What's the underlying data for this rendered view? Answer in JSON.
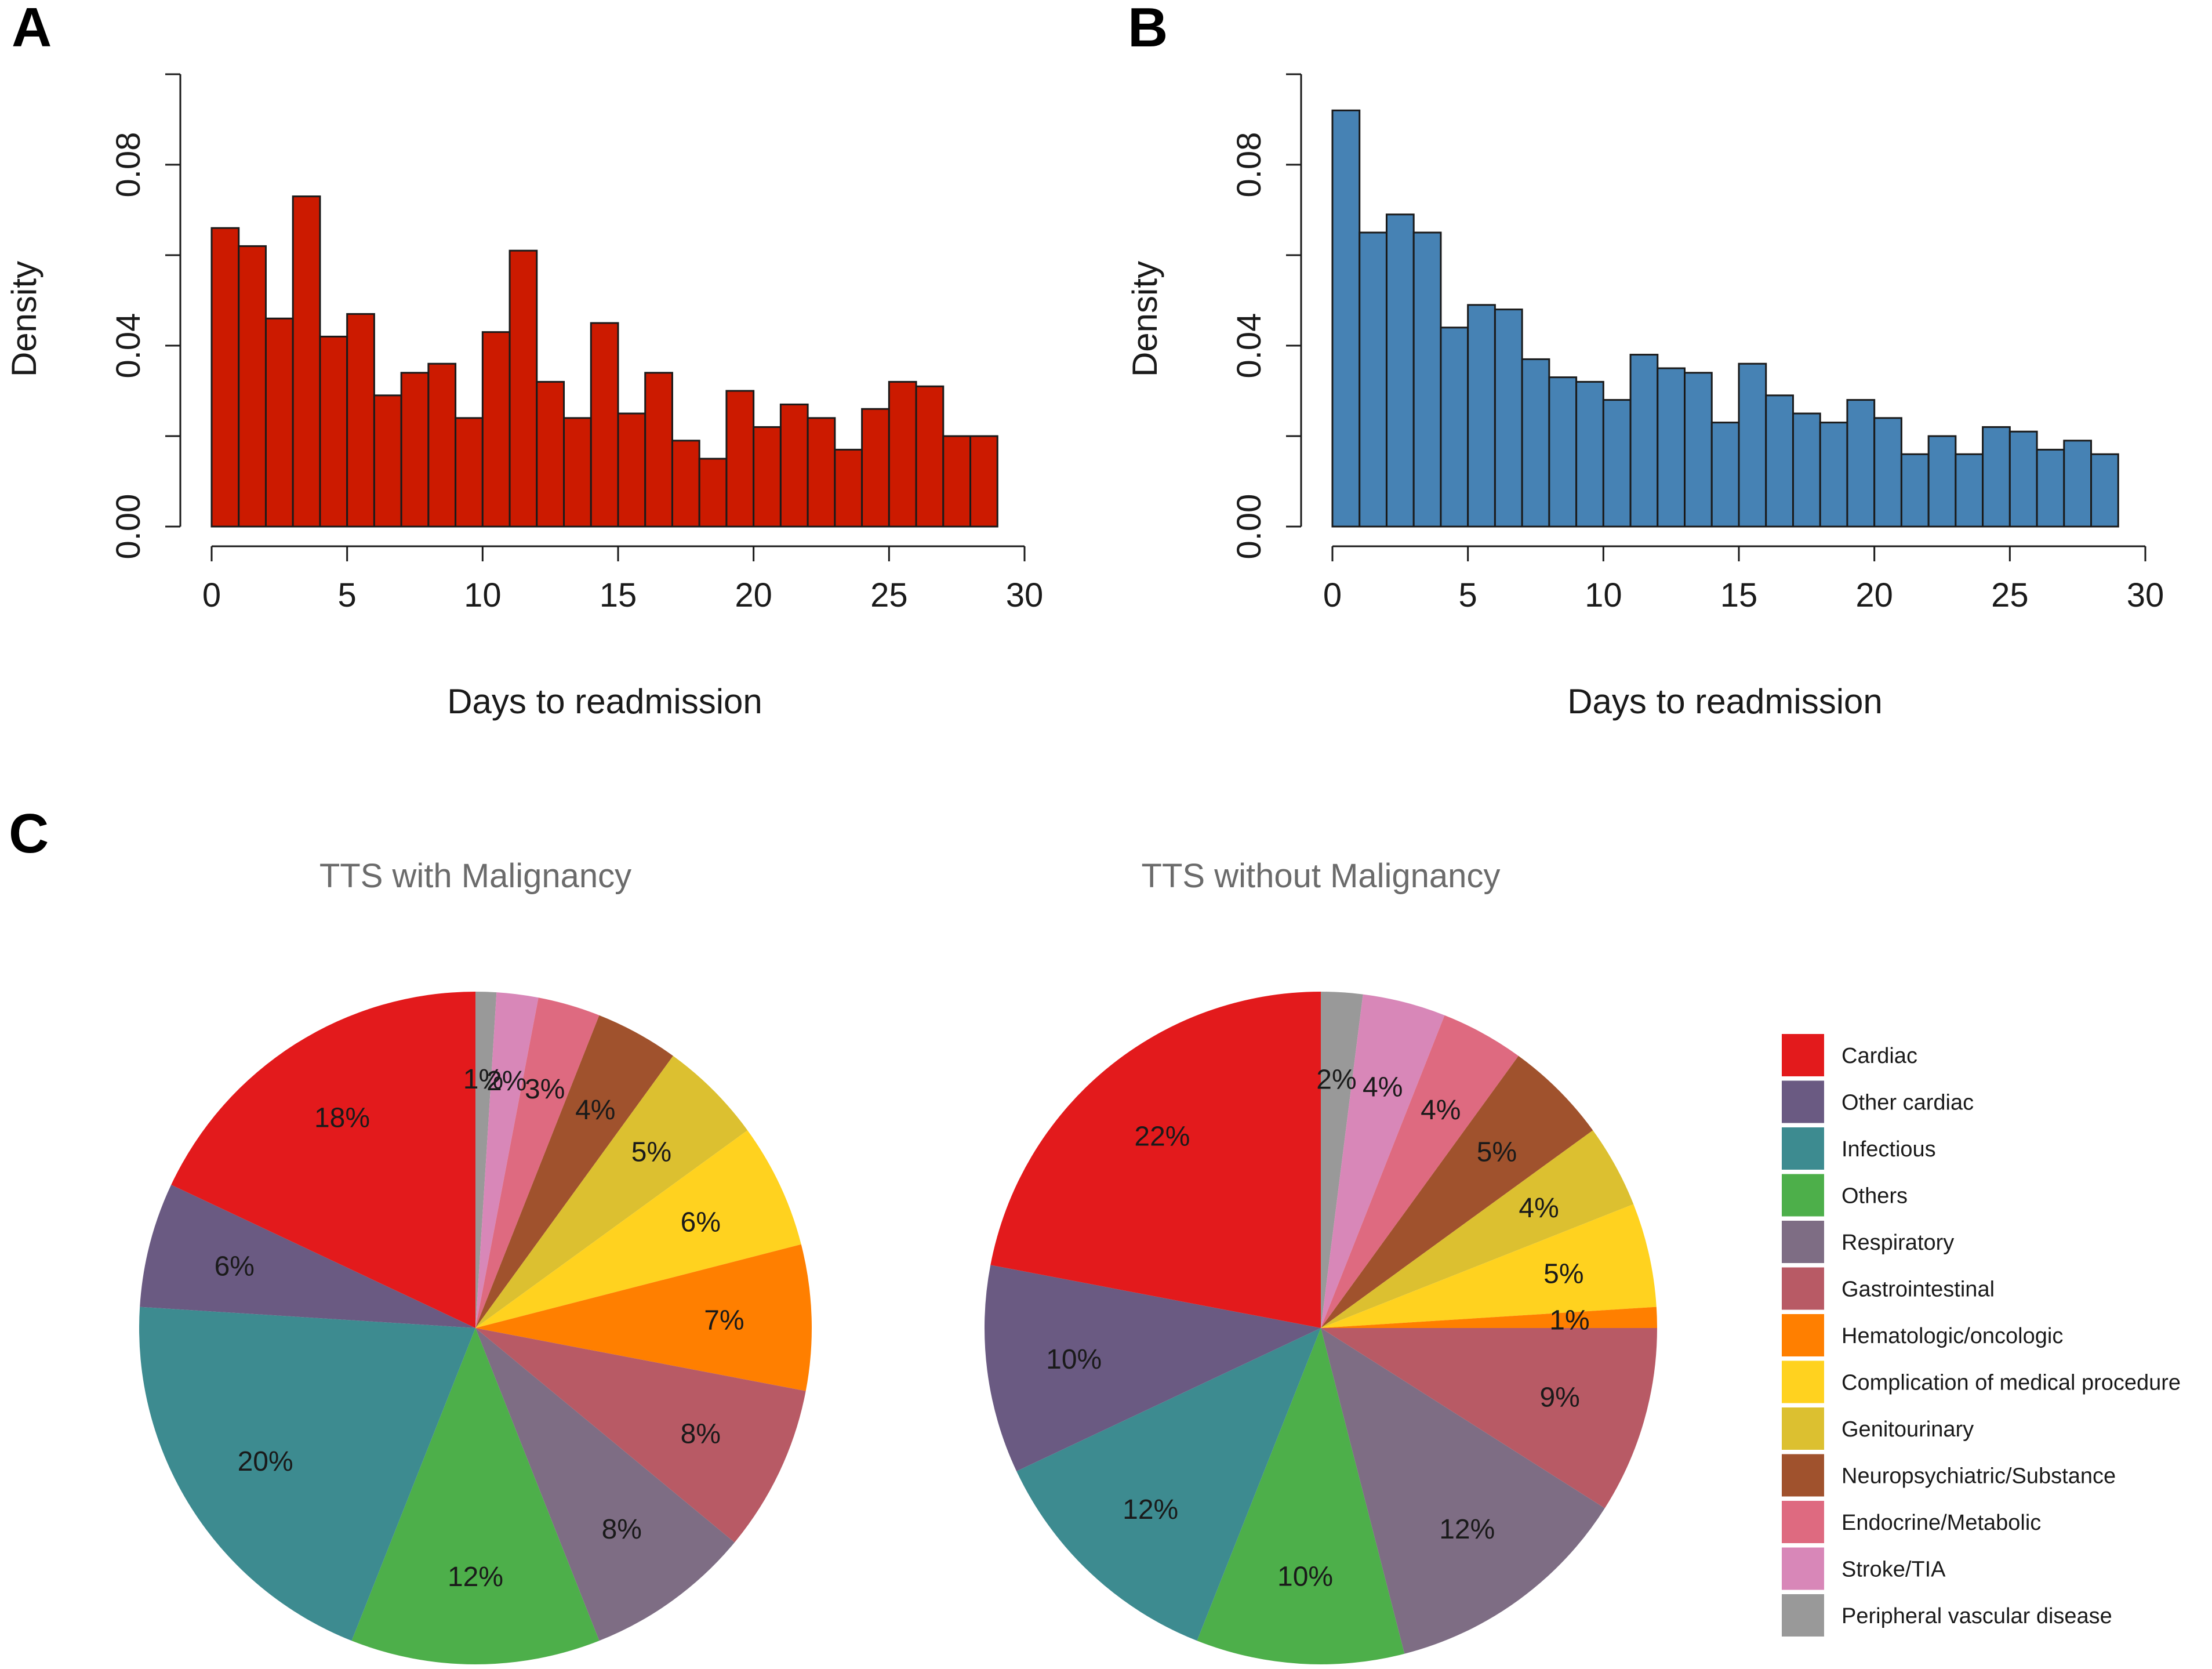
{
  "panels": {
    "a": "A",
    "b": "B",
    "c": "C"
  },
  "chart_data": [
    {
      "type": "bar",
      "subtype": "histogram",
      "panel": "A",
      "color": "#cc1a00",
      "xlabel": "Days to readmission",
      "ylabel": "Density",
      "xlim": [
        0,
        30
      ],
      "ylim": [
        0,
        0.1
      ],
      "xticks": [
        "0",
        "5",
        "10",
        "15",
        "20",
        "25",
        "30"
      ],
      "yticks": [
        "0.00",
        "0.04",
        "0.08"
      ],
      "bin_width": 1,
      "values": [
        0.066,
        0.062,
        0.046,
        0.073,
        0.042,
        0.047,
        0.029,
        0.034,
        0.036,
        0.024,
        0.043,
        0.061,
        0.032,
        0.024,
        0.045,
        0.025,
        0.034,
        0.019,
        0.015,
        0.03,
        0.022,
        0.027,
        0.024,
        0.017,
        0.026,
        0.032,
        0.031,
        0.02,
        0.02
      ]
    },
    {
      "type": "bar",
      "subtype": "histogram",
      "panel": "B",
      "color": "#4682b4",
      "xlabel": "Days to readmission",
      "ylabel": "Density",
      "xlim": [
        0,
        30
      ],
      "ylim": [
        0,
        0.1
      ],
      "xticks": [
        "0",
        "5",
        "10",
        "15",
        "20",
        "25",
        "30"
      ],
      "yticks": [
        "0.00",
        "0.04",
        "0.08"
      ],
      "bin_width": 1,
      "values": [
        0.092,
        0.065,
        0.069,
        0.065,
        0.044,
        0.049,
        0.048,
        0.037,
        0.033,
        0.032,
        0.028,
        0.038,
        0.035,
        0.034,
        0.023,
        0.036,
        0.029,
        0.025,
        0.023,
        0.028,
        0.024,
        0.016,
        0.02,
        0.016,
        0.022,
        0.021,
        0.017,
        0.019,
        0.016
      ]
    },
    {
      "type": "pie",
      "panel": "C",
      "title": "TTS with Malignancy",
      "slices": [
        {
          "category": "Peripheral vascular disease",
          "value": 1,
          "label": "1%"
        },
        {
          "category": "Stroke/TIA",
          "value": 2,
          "label": "2%"
        },
        {
          "category": "Endocrine/Metabolic",
          "value": 3,
          "label": "3%"
        },
        {
          "category": "Neuropsychiatric/Substance",
          "value": 4,
          "label": "4%"
        },
        {
          "category": "Genitourinary",
          "value": 5,
          "label": "5%"
        },
        {
          "category": "Complication of medical procedure",
          "value": 6,
          "label": "6%"
        },
        {
          "category": "Hematologic/oncologic",
          "value": 7,
          "label": "7%"
        },
        {
          "category": "Gastrointestinal",
          "value": 8,
          "label": "8%"
        },
        {
          "category": "Respiratory",
          "value": 8,
          "label": "8%"
        },
        {
          "category": "Others",
          "value": 12,
          "label": "12%"
        },
        {
          "category": "Infectious",
          "value": 20,
          "label": "20%"
        },
        {
          "category": "Other cardiac",
          "value": 6,
          "label": "6%"
        },
        {
          "category": "Cardiac",
          "value": 18,
          "label": "18%"
        }
      ]
    },
    {
      "type": "pie",
      "panel": "C",
      "title": "TTS without Malignancy",
      "slices": [
        {
          "category": "Peripheral vascular disease",
          "value": 2,
          "label": "2%"
        },
        {
          "category": "Stroke/TIA",
          "value": 4,
          "label": "4%"
        },
        {
          "category": "Endocrine/Metabolic",
          "value": 4,
          "label": "4%"
        },
        {
          "category": "Neuropsychiatric/Substance",
          "value": 5,
          "label": "5%"
        },
        {
          "category": "Genitourinary",
          "value": 4,
          "label": "4%"
        },
        {
          "category": "Complication of medical procedure",
          "value": 5,
          "label": "5%"
        },
        {
          "category": "Hematologic/oncologic",
          "value": 1,
          "label": "1%"
        },
        {
          "category": "Gastrointestinal",
          "value": 9,
          "label": "9%"
        },
        {
          "category": "Respiratory",
          "value": 12,
          "label": "12%"
        },
        {
          "category": "Others",
          "value": 10,
          "label": "10%"
        },
        {
          "category": "Infectious",
          "value": 12,
          "label": "12%"
        },
        {
          "category": "Other cardiac",
          "value": 10,
          "label": "10%"
        },
        {
          "category": "Cardiac",
          "value": 22,
          "label": "22%"
        }
      ]
    }
  ],
  "legend": {
    "items": [
      {
        "label": "Cardiac",
        "color": "#e31a1c"
      },
      {
        "label": "Other cardiac",
        "color": "#6a5a82"
      },
      {
        "label": "Infectious",
        "color": "#3d8b90"
      },
      {
        "label": "Others",
        "color": "#4daf4a"
      },
      {
        "label": "Respiratory",
        "color": "#7e6d84"
      },
      {
        "label": "Gastrointestinal",
        "color": "#b85a65"
      },
      {
        "label": "Hematologic/oncologic",
        "color": "#ff7f00"
      },
      {
        "label": "Complication of medical procedure",
        "color": "#ffd21f"
      },
      {
        "label": "Genitourinary",
        "color": "#dcc030"
      },
      {
        "label": "Neuropsychiatric/Substance",
        "color": "#a0522d"
      },
      {
        "label": "Endocrine/Metabolic",
        "color": "#de6a80"
      },
      {
        "label": "Stroke/TIA",
        "color": "#d887b8"
      },
      {
        "label": "Peripheral vascular disease",
        "color": "#999999"
      }
    ]
  }
}
